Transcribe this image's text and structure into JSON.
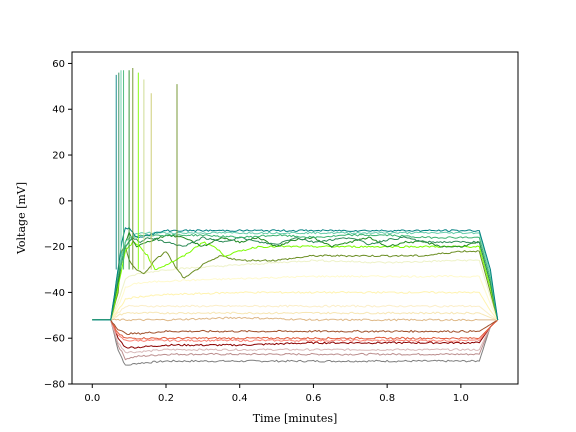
{
  "chart_data": {
    "type": "line",
    "title": "",
    "xlabel": "Time [minutes]",
    "ylabel": "Voltage [mV]",
    "xlim": [
      -0.055,
      1.155
    ],
    "ylim": [
      -80,
      65
    ],
    "xticks": [
      0.0,
      0.2,
      0.4,
      0.6,
      0.8,
      1.0
    ],
    "xtick_labels": [
      "0.0",
      "0.2",
      "0.4",
      "0.6",
      "0.8",
      "1.0"
    ],
    "yticks": [
      -80,
      -60,
      -40,
      -20,
      0,
      20,
      40,
      60
    ],
    "ytick_labels": [
      "−80",
      "−60",
      "−40",
      "−20",
      "0",
      "20",
      "40",
      "60"
    ],
    "grid": false,
    "legend": "none",
    "series": [
      {
        "color": "#7f7f7f",
        "x": [
          0,
          0.05,
          0.07,
          0.09,
          0.12,
          0.2,
          0.4,
          0.6,
          0.8,
          1.0,
          1.05,
          1.08,
          1.1
        ],
        "y": [
          -52,
          -52,
          -65,
          -72,
          -71,
          -70,
          -70,
          -70,
          -70,
          -70,
          -70,
          -55,
          -52
        ]
      },
      {
        "color": "#bc8f8f",
        "x": [
          0,
          0.05,
          0.07,
          0.09,
          0.12,
          0.2,
          0.4,
          0.6,
          0.8,
          1.0,
          1.05,
          1.08,
          1.1
        ],
        "y": [
          -52,
          -52,
          -63,
          -69,
          -68,
          -67,
          -67,
          -67,
          -67,
          -67,
          -67,
          -55,
          -52
        ]
      },
      {
        "color": "#d8b8b8",
        "x": [
          0,
          0.05,
          0.07,
          0.09,
          0.12,
          0.2,
          0.4,
          0.6,
          0.8,
          1.0,
          1.05,
          1.08,
          1.1
        ],
        "y": [
          -52,
          -52,
          -62,
          -66,
          -66,
          -65,
          -65,
          -65,
          -65,
          -65,
          -65,
          -55,
          -52
        ]
      },
      {
        "color": "#8b0000",
        "x": [
          0,
          0.05,
          0.07,
          0.09,
          0.12,
          0.2,
          0.4,
          0.6,
          0.8,
          1.0,
          1.05,
          1.08,
          1.1
        ],
        "y": [
          -52,
          -52,
          -60,
          -64,
          -64,
          -63,
          -63,
          -62,
          -62,
          -62,
          -62,
          -55,
          -52
        ]
      },
      {
        "color": "#fa8072",
        "x": [
          0,
          0.05,
          0.07,
          0.09,
          0.12,
          0.2,
          0.4,
          0.6,
          0.8,
          1.0,
          1.05,
          1.08,
          1.1
        ],
        "y": [
          -52,
          -52,
          -59,
          -61,
          -61,
          -61,
          -61,
          -61,
          -61,
          -61,
          -61,
          -55,
          -52
        ]
      },
      {
        "color": "#e25b3c",
        "x": [
          0,
          0.05,
          0.07,
          0.09,
          0.12,
          0.2,
          0.4,
          0.6,
          0.8,
          1.0,
          1.05,
          1.08,
          1.1
        ],
        "y": [
          -52,
          -52,
          -58,
          -60,
          -60,
          -60,
          -60,
          -60,
          -60,
          -60,
          -60,
          -55,
          -52
        ]
      },
      {
        "color": "#a0522d",
        "x": [
          0,
          0.05,
          0.07,
          0.09,
          0.12,
          0.2,
          0.4,
          0.6,
          0.8,
          1.0,
          1.05,
          1.08,
          1.1
        ],
        "y": [
          -52,
          -52,
          -56,
          -58,
          -58,
          -57,
          -57,
          -57,
          -57,
          -57,
          -57,
          -54,
          -52
        ]
      },
      {
        "color": "#deb887",
        "x": [
          0,
          0.05,
          0.07,
          0.09,
          0.12,
          0.2,
          0.4,
          0.6,
          0.8,
          1.0,
          1.05,
          1.08,
          1.1
        ],
        "y": [
          -52,
          -52,
          -52,
          -52,
          -52,
          -52,
          -51,
          -52,
          -52,
          -52,
          -52,
          -52,
          -52
        ]
      },
      {
        "color": "#f7e7b5",
        "x": [
          0,
          0.05,
          0.07,
          0.09,
          0.12,
          0.2,
          0.4,
          0.6,
          0.8,
          1.0,
          1.05,
          1.08,
          1.1
        ],
        "y": [
          -52,
          -52,
          -50,
          -49,
          -49,
          -49,
          -49,
          -49,
          -49,
          -49,
          -49,
          -51,
          -52
        ]
      },
      {
        "color": "#fbeec8",
        "x": [
          0,
          0.05,
          0.07,
          0.09,
          0.12,
          0.2,
          0.4,
          0.6,
          0.8,
          1.0,
          1.05,
          1.08,
          1.1
        ],
        "y": [
          -52,
          -52,
          -49,
          -46,
          -46,
          -46,
          -46,
          -46,
          -46,
          -46,
          -46,
          -50,
          -52
        ]
      },
      {
        "color": "#fff3b0",
        "x": [
          0,
          0.05,
          0.07,
          0.09,
          0.12,
          0.2,
          0.4,
          0.6,
          0.8,
          1.0,
          1.05,
          1.08,
          1.1
        ],
        "y": [
          -52,
          -52,
          -48,
          -43,
          -42,
          -41,
          -40,
          -40,
          -40,
          -40,
          -40,
          -48,
          -52
        ]
      },
      {
        "color": "#fffacd",
        "x": [
          0,
          0.05,
          0.07,
          0.09,
          0.12,
          0.2,
          0.4,
          0.6,
          0.8,
          1.0,
          1.05,
          1.08,
          1.1
        ],
        "y": [
          -52,
          -52,
          -46,
          -38,
          -36,
          -35,
          -34,
          -33,
          -33,
          -33,
          -33,
          -45,
          -52
        ]
      },
      {
        "color": "#eef2c8",
        "x": [
          0,
          0.05,
          0.07,
          0.09,
          0.12,
          0.2,
          0.4,
          0.6,
          0.8,
          1.0,
          1.05,
          1.08,
          1.1
        ],
        "y": [
          -52,
          -52,
          -44,
          -34,
          -32,
          -30,
          -28,
          -26,
          -27,
          -26,
          -26,
          -42,
          -52
        ]
      },
      {
        "color": "#6b8e23",
        "x": [
          0,
          0.05,
          0.07,
          0.08,
          0.09,
          0.1,
          0.12,
          0.14,
          0.17,
          0.2,
          0.23,
          0.25,
          0.3,
          0.35,
          0.4,
          0.45,
          0.5,
          0.55,
          0.6,
          0.7,
          0.8,
          0.9,
          1.0,
          1.05,
          1.08,
          1.1
        ],
        "y": [
          -52,
          -52,
          -40,
          -22,
          -20,
          -26,
          -30,
          -32,
          -26,
          -22,
          -30,
          -34,
          -28,
          -24,
          -26,
          -26,
          -26,
          -25,
          -24,
          -24,
          -24,
          -24,
          -22,
          -22,
          -40,
          -52
        ]
      },
      {
        "color": "#7cfc00",
        "x": [
          0,
          0.05,
          0.07,
          0.09,
          0.11,
          0.13,
          0.15,
          0.17,
          0.2,
          0.25,
          0.3,
          0.33,
          0.36,
          0.4,
          0.45,
          0.5,
          0.55,
          0.6,
          0.7,
          0.8,
          0.9,
          1.0,
          1.05,
          1.08,
          1.1
        ],
        "y": [
          -52,
          -52,
          -38,
          -22,
          -18,
          -20,
          -24,
          -30,
          -28,
          -24,
          -18,
          -20,
          -24,
          -22,
          -20,
          -20,
          -20,
          -20,
          -20,
          -20,
          -20,
          -20,
          -20,
          -38,
          -52
        ]
      },
      {
        "color": "#228b22",
        "x": [
          0,
          0.05,
          0.07,
          0.09,
          0.1,
          0.12,
          0.15,
          0.2,
          0.25,
          0.3,
          0.35,
          0.4,
          0.45,
          0.5,
          0.55,
          0.6,
          0.65,
          0.7,
          0.75,
          0.8,
          0.85,
          0.9,
          0.95,
          1.0,
          1.05,
          1.08,
          1.1
        ],
        "y": [
          -52,
          -52,
          -36,
          -18,
          -14,
          -20,
          -18,
          -15,
          -16,
          -20,
          -16,
          -18,
          -16,
          -20,
          -17,
          -16,
          -20,
          -18,
          -16,
          -20,
          -18,
          -18,
          -20,
          -20,
          -18,
          -36,
          -52
        ]
      },
      {
        "color": "#2e8b57",
        "x": [
          0,
          0.05,
          0.07,
          0.09,
          0.11,
          0.13,
          0.15,
          0.2,
          0.25,
          0.3,
          0.35,
          0.4,
          0.45,
          0.5,
          0.55,
          0.6,
          0.65,
          0.7,
          0.75,
          0.8,
          0.85,
          0.9,
          1.0,
          1.05,
          1.08,
          1.1
        ],
        "y": [
          -52,
          -52,
          -34,
          -20,
          -16,
          -18,
          -16,
          -18,
          -20,
          -16,
          -18,
          -16,
          -18,
          -19,
          -16,
          -18,
          -17,
          -16,
          -19,
          -17,
          -16,
          -18,
          -18,
          -18,
          -36,
          -52
        ]
      },
      {
        "color": "#3cb371",
        "x": [
          0,
          0.05,
          0.07,
          0.09,
          0.11,
          0.14,
          0.2,
          0.3,
          0.4,
          0.5,
          0.6,
          0.7,
          0.8,
          0.9,
          1.0,
          1.05,
          1.08,
          1.1
        ],
        "y": [
          -52,
          -52,
          -32,
          -20,
          -16,
          -15,
          -15,
          -15,
          -16,
          -15,
          -16,
          -15,
          -15,
          -16,
          -16,
          -16,
          -34,
          -52
        ]
      },
      {
        "color": "#66cdaa",
        "x": [
          0,
          0.05,
          0.07,
          0.09,
          0.11,
          0.14,
          0.2,
          0.3,
          0.4,
          0.5,
          0.6,
          0.7,
          0.8,
          0.9,
          1.0,
          1.05,
          1.08,
          1.1
        ],
        "y": [
          -52,
          -52,
          -30,
          -18,
          -15,
          -14,
          -14,
          -14,
          -14,
          -14,
          -14,
          -14,
          -14,
          -14,
          -14,
          -14,
          -32,
          -52
        ]
      },
      {
        "color": "#008080",
        "x": [
          0,
          0.05,
          0.07,
          0.08,
          0.09,
          0.1,
          0.12,
          0.15,
          0.2,
          0.3,
          0.4,
          0.5,
          0.6,
          0.7,
          0.8,
          0.9,
          1.0,
          1.05,
          1.08,
          1.1
        ],
        "y": [
          -52,
          -52,
          -30,
          -18,
          -12,
          -12,
          -16,
          -15,
          -13,
          -13,
          -13,
          -13,
          -13,
          -13,
          -13,
          -13,
          -13,
          -13,
          -30,
          -52
        ]
      }
    ],
    "spikes": [
      {
        "color": "#008080",
        "x": 0.065,
        "peak": 55
      },
      {
        "color": "#2e8b57",
        "x": 0.072,
        "peak": 56
      },
      {
        "color": "#66cdaa",
        "x": 0.078,
        "peak": 57
      },
      {
        "color": "#3cb371",
        "x": 0.085,
        "peak": 57
      },
      {
        "color": "#228b22",
        "x": 0.1,
        "peak": 57
      },
      {
        "color": "#6b8e23",
        "x": 0.11,
        "peak": 58
      },
      {
        "color": "#7cfc00",
        "x": 0.125,
        "peak": 56
      },
      {
        "color": "#c9d98a",
        "x": 0.14,
        "peak": 53
      },
      {
        "color": "#c8c86a",
        "x": 0.16,
        "peak": 47
      },
      {
        "color": "#6b8e23",
        "x": 0.23,
        "peak": 51
      }
    ]
  }
}
